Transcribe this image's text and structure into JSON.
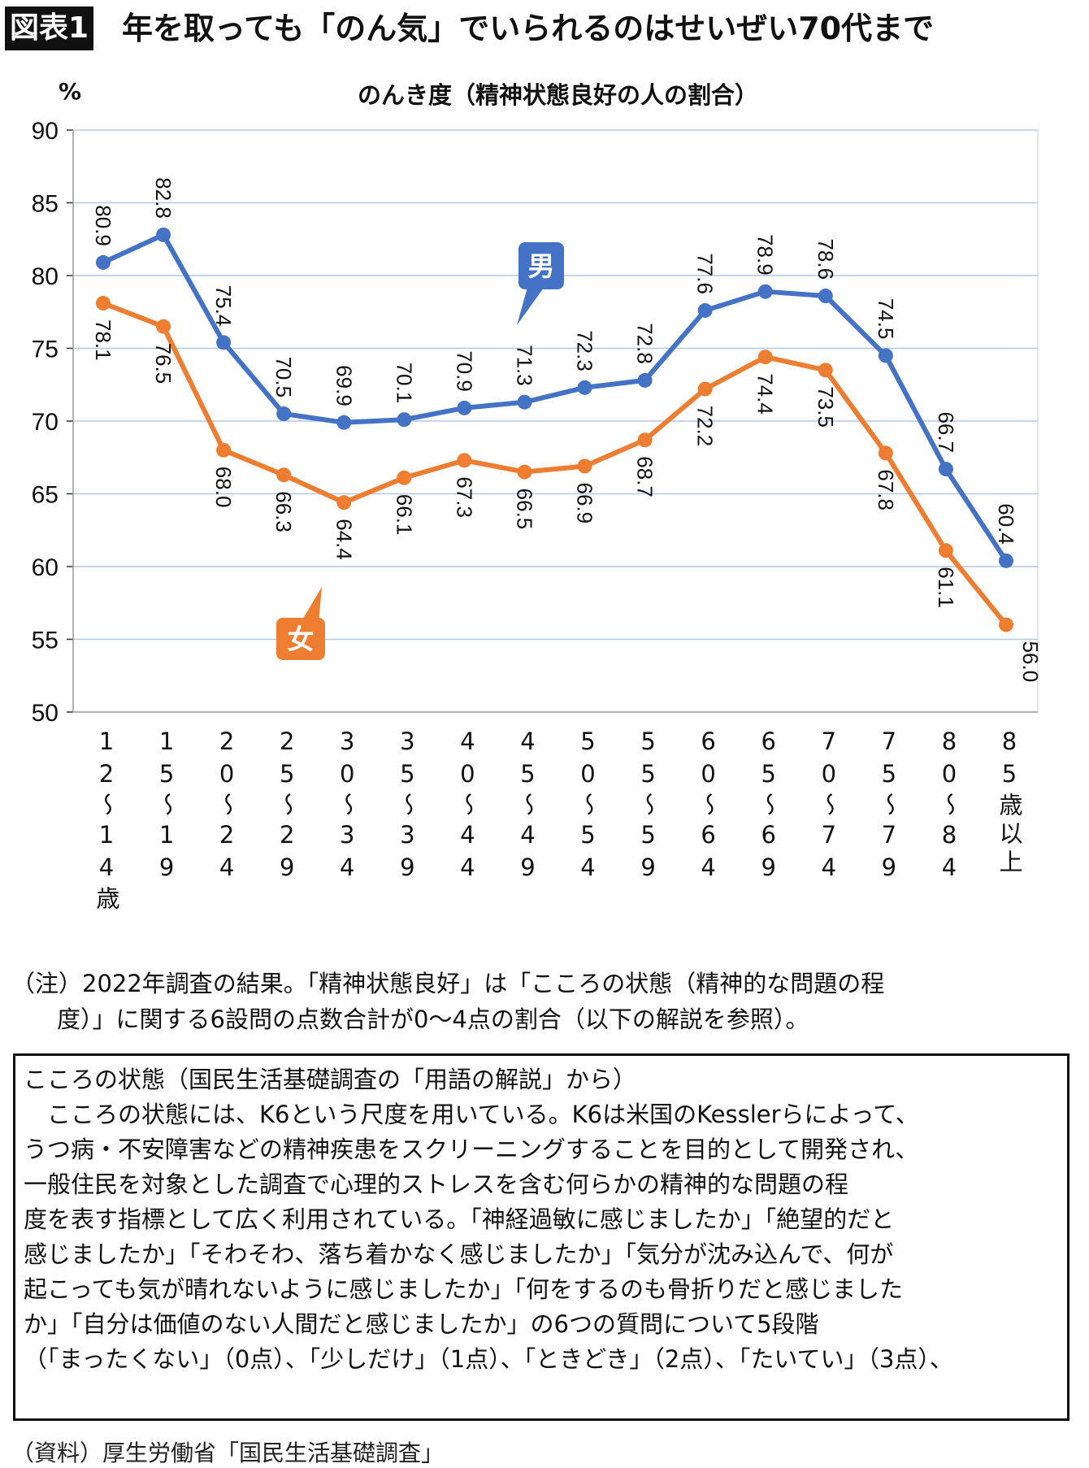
{
  "header": {
    "badge": "図表1",
    "title": "年を取っても「のん気」でいられるのはせいぜい70代まで"
  },
  "chart_data": {
    "type": "line",
    "title": "のんき度（精神状態良好の人の割合）",
    "ylabel": "%",
    "ylim": [
      50,
      90
    ],
    "yticks": [
      50,
      55,
      60,
      65,
      70,
      75,
      80,
      85,
      90
    ],
    "grid": true,
    "categories": [
      "12～14歳",
      "15～19",
      "20～24",
      "25～29",
      "30～34",
      "35～39",
      "40～44",
      "45～49",
      "50～54",
      "55～59",
      "60～64",
      "65～69",
      "70～74",
      "75～79",
      "80～84",
      "85歳以上"
    ],
    "series": [
      {
        "name": "男",
        "color": "#4472C4",
        "values": [
          80.9,
          82.8,
          75.4,
          70.5,
          69.9,
          70.1,
          70.9,
          71.3,
          72.3,
          72.8,
          77.6,
          78.9,
          78.6,
          74.5,
          66.7,
          60.4
        ]
      },
      {
        "name": "女",
        "color": "#ED7D31",
        "values": [
          78.1,
          76.5,
          68.0,
          66.3,
          64.4,
          66.1,
          67.3,
          66.5,
          66.9,
          68.7,
          72.2,
          74.4,
          73.5,
          67.8,
          61.1,
          56.0
        ]
      }
    ]
  },
  "note": {
    "line1": "（注）2022年調査の結果。「精神状態良好」は「こころの状態（精神的な問題の程",
    "line2": "度）」に関する6設問の点数合計が0～4点の割合（以下の解説を参照）。"
  },
  "box": {
    "heading": "こころの状態（国民生活基礎調査の「用語の解説」から）",
    "lines": [
      "　こころの状態には、K6という尺度を用いている。K6は米国のKesslerらによって、",
      "うつ病・不安障害などの精神疾患をスクリーニングすることを目的として開発され、",
      "一般住民を対象とした調査で心理的ストレスを含む何らかの精神的な問題の程",
      "度を表す指標として広く利用されている。「神経過敏に感じましたか」「絶望的だと",
      "感じましたか」「そわそわ、落ち着かなく感じましたか」「気分が沈み込んで、何が",
      "起こっても気が晴れないように感じましたか」「何をするのも骨折りだと感じました",
      "か」「自分は価値のない人間だと感じましたか」の6つの質問について5段階",
      "（「まったくない」（0点）、「少しだけ」（1点）、「ときどき」（2点）、「たいてい」（3点）、"
    ]
  },
  "source": "（資料）厚生労働省「国民生活基礎調査」"
}
